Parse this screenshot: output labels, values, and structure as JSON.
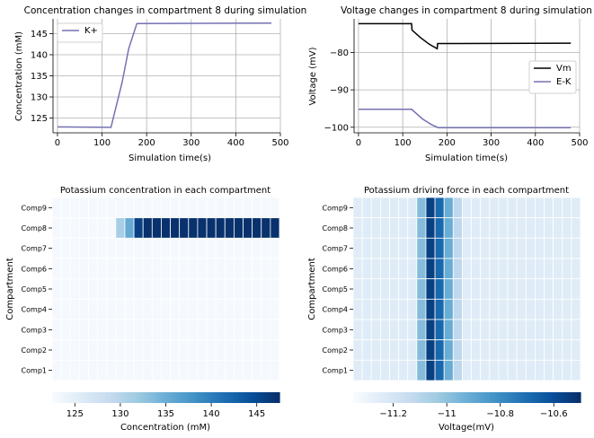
{
  "chart_data": [
    {
      "type": "line",
      "title": "Concentration changes in compartment 8 during simulation",
      "xlabel": "Simulation time(s)",
      "ylabel": "Concentration (mM)",
      "xlim": [
        -10,
        500
      ],
      "ylim": [
        121.5,
        148.5
      ],
      "xticks": [
        0,
        100,
        200,
        300,
        400,
        500
      ],
      "yticks": [
        125,
        130,
        135,
        140,
        145
      ],
      "grid": true,
      "legend": "upper-left",
      "series": [
        {
          "name": "K+",
          "color": "#7570b3",
          "x": [
            0,
            120,
            145,
            160,
            178,
            480
          ],
          "y": [
            122.9,
            122.8,
            133.5,
            141.5,
            147.4,
            147.5
          ]
        }
      ]
    },
    {
      "type": "line",
      "title": "Voltage changes in compartment 8 during simulation",
      "xlabel": "Simulation time(s)",
      "ylabel": "Voltage (mV)",
      "xlim": [
        -10,
        500
      ],
      "ylim": [
        -101.5,
        -71
      ],
      "xticks": [
        0,
        100,
        200,
        300,
        400,
        500
      ],
      "yticks": [
        -100,
        -90,
        -80
      ],
      "grid": true,
      "legend": "center-right",
      "series": [
        {
          "name": "Vm",
          "color": "#000000",
          "x": [
            0,
            120,
            121,
            140,
            160,
            178,
            179,
            480
          ],
          "y": [
            -72.3,
            -72.3,
            -74.0,
            -76.0,
            -77.8,
            -79.0,
            -77.6,
            -77.5
          ]
        },
        {
          "name": "E-K",
          "color": "#7570b3",
          "x": [
            0,
            120,
            145,
            165,
            180,
            480
          ],
          "y": [
            -95.2,
            -95.2,
            -97.8,
            -99.3,
            -100.1,
            -100.1
          ]
        }
      ]
    },
    {
      "type": "heatmap",
      "title": "Potassium concentration in each compartment",
      "ylabel": "Compartment",
      "rows": [
        "Comp9",
        "Comp8",
        "Comp7",
        "Comp6",
        "Comp5",
        "Comp4",
        "Comp3",
        "Comp2",
        "Comp1"
      ],
      "n_columns": 25,
      "colormap": "Blues",
      "colorbar": {
        "label": "Concentration (mM)",
        "min": 122.5,
        "max": 147.5,
        "ticks": [
          125,
          130,
          135,
          140,
          145
        ]
      },
      "baseline": 122.8,
      "special_rows": {
        "Comp8": [
          122.8,
          122.8,
          122.8,
          122.8,
          122.8,
          122.8,
          122.8,
          131.2,
          135.5,
          146.0,
          147.4,
          147.4,
          147.4,
          147.4,
          147.4,
          147.4,
          147.4,
          147.4,
          147.4,
          147.4,
          147.4,
          147.4,
          147.4,
          147.4,
          147.4
        ]
      }
    },
    {
      "type": "heatmap",
      "title": "Potassium driving force in each compartment",
      "ylabel": "Compartment",
      "xlabel": "Voltage(mV)",
      "rows": [
        "Comp9",
        "Comp8",
        "Comp7",
        "Comp6",
        "Comp5",
        "Comp4",
        "Comp3",
        "Comp2",
        "Comp1"
      ],
      "n_columns": 25,
      "colormap": "Blues",
      "colorbar": {
        "label": "Voltage(mV)",
        "min": -11.35,
        "max": -10.5,
        "ticks": [
          -11.2,
          -11.0,
          -10.8,
          -10.6
        ]
      },
      "column_values": [
        -11.25,
        -11.25,
        -11.25,
        -11.25,
        -11.25,
        -11.25,
        -11.25,
        -10.98,
        -10.55,
        -10.68,
        -10.92,
        -11.12,
        -11.25,
        -11.25,
        -11.25,
        -11.25,
        -11.25,
        -11.25,
        -11.25,
        -11.25,
        -11.25,
        -11.25,
        -11.25,
        -11.25,
        -11.25
      ]
    }
  ]
}
